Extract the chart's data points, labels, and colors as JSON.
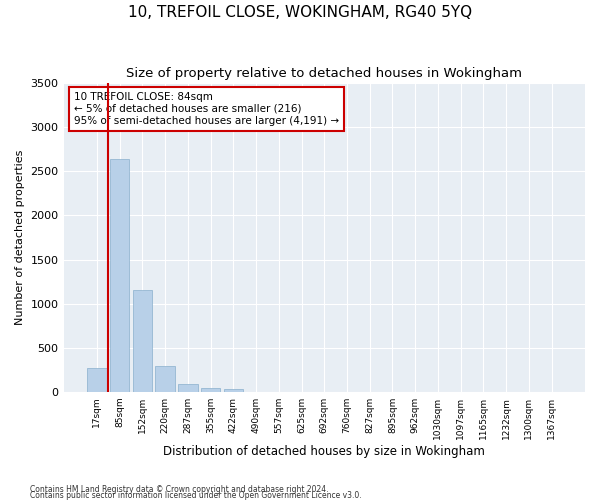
{
  "title": "10, TREFOIL CLOSE, WOKINGHAM, RG40 5YQ",
  "subtitle": "Size of property relative to detached houses in Wokingham",
  "xlabel": "Distribution of detached houses by size in Wokingham",
  "ylabel": "Number of detached properties",
  "bar_labels": [
    "17sqm",
    "85sqm",
    "152sqm",
    "220sqm",
    "287sqm",
    "355sqm",
    "422sqm",
    "490sqm",
    "557sqm",
    "625sqm",
    "692sqm",
    "760sqm",
    "827sqm",
    "895sqm",
    "962sqm",
    "1030sqm",
    "1097sqm",
    "1165sqm",
    "1232sqm",
    "1300sqm",
    "1367sqm"
  ],
  "bar_values": [
    270,
    2640,
    1160,
    290,
    90,
    45,
    35,
    0,
    0,
    0,
    0,
    0,
    0,
    0,
    0,
    0,
    0,
    0,
    0,
    0,
    0
  ],
  "bar_color": "#b8d0e8",
  "bar_edge_color": "#8ab0cc",
  "highlight_color": "#cc0000",
  "annotation_text": "10 TREFOIL CLOSE: 84sqm\n← 5% of detached houses are smaller (216)\n95% of semi-detached houses are larger (4,191) →",
  "annotation_box_color": "#ffffff",
  "annotation_box_edge_color": "#cc0000",
  "ylim": [
    0,
    3500
  ],
  "yticks": [
    0,
    500,
    1000,
    1500,
    2000,
    2500,
    3000,
    3500
  ],
  "bg_color": "#e8eef4",
  "grid_color": "#ffffff",
  "footer1": "Contains HM Land Registry data © Crown copyright and database right 2024.",
  "footer2": "Contains public sector information licensed under the Open Government Licence v3.0.",
  "title_fontsize": 11,
  "subtitle_fontsize": 9.5
}
